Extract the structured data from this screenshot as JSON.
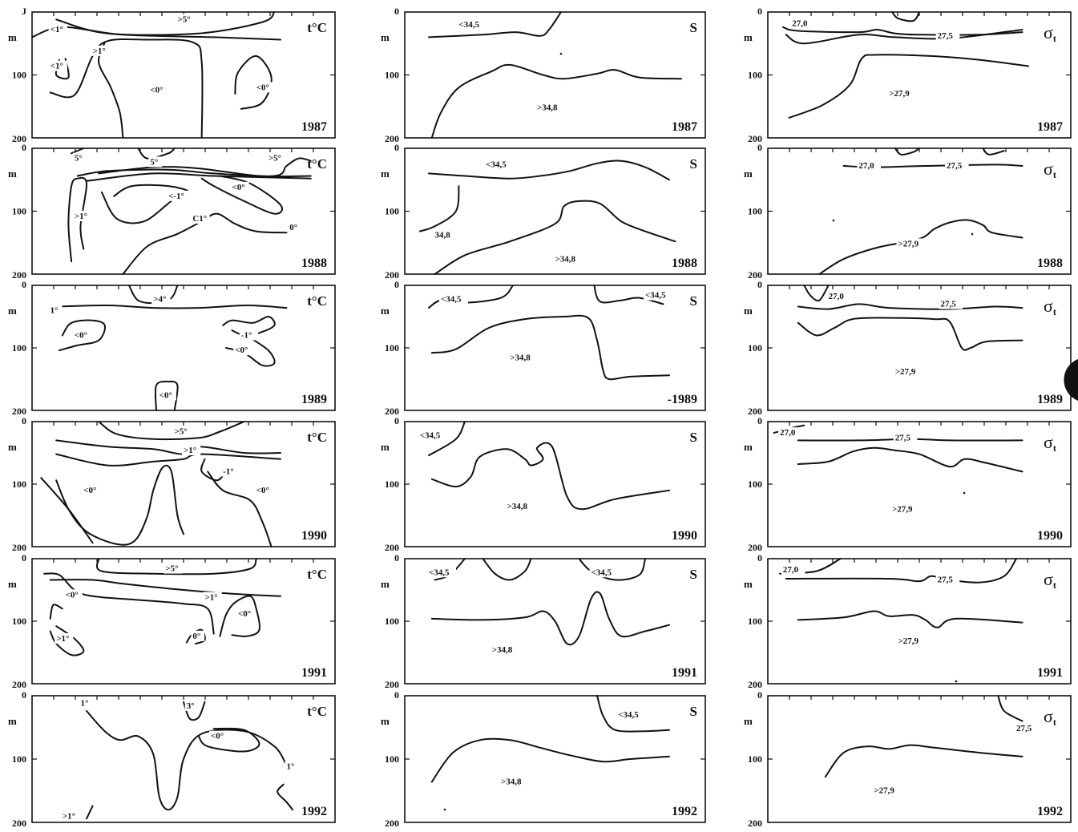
{
  "figure": {
    "columns": [
      {
        "parameter": "t°C"
      },
      {
        "parameter": "S"
      },
      {
        "parameter": "σt"
      }
    ],
    "depth_unit": "m",
    "depth_ticks": [
      "0",
      "100",
      "200"
    ],
    "first_panel_top_tick": "J",
    "years": [
      "1987",
      "1988",
      "1989",
      "1990",
      "1991",
      "1992"
    ],
    "year_labels": [
      [
        "1987",
        "1987",
        "1987"
      ],
      [
        "1988",
        "1988",
        "1988"
      ],
      [
        "1989",
        "-1989",
        "1989"
      ],
      [
        "1990",
        "1990",
        "1990"
      ],
      [
        "1991",
        "1991",
        "1991"
      ],
      [
        "1992",
        "1992",
        "1992"
      ]
    ]
  },
  "chart_data": {
    "type": "contour-sections",
    "panels": [
      {
        "row": 0,
        "col": 0,
        "year": "1987",
        "parameter": "t°C",
        "ylim": [
          0,
          200
        ],
        "contour_labels": [
          {
            "text": ">5°"
          },
          {
            "text": "<1°"
          },
          {
            "text": ">1°"
          },
          {
            "text": "<1°"
          },
          {
            "text": "<0°"
          },
          {
            "text": "<0°"
          }
        ]
      },
      {
        "row": 0,
        "col": 1,
        "year": "1987",
        "parameter": "S",
        "ylim": [
          0,
          200
        ],
        "contour_labels": [
          {
            "text": "<34,5"
          },
          {
            "text": ">34,8"
          }
        ]
      },
      {
        "row": 0,
        "col": 2,
        "year": "1987",
        "parameter": "σt",
        "ylim": [
          0,
          200
        ],
        "contour_labels": [
          {
            "text": "27,0"
          },
          {
            "text": "27,5"
          },
          {
            "text": ">27,9"
          }
        ]
      },
      {
        "row": 1,
        "col": 0,
        "year": "1988",
        "parameter": "t°C",
        "ylim": [
          0,
          200
        ],
        "contour_labels": [
          {
            "text": "5°"
          },
          {
            "text": "5°"
          },
          {
            "text": ">5°"
          },
          {
            "text": "<-1°"
          },
          {
            "text": "<0°"
          },
          {
            "text": ">1°"
          },
          {
            "text": "C1°"
          },
          {
            "text": "0°"
          }
        ]
      },
      {
        "row": 1,
        "col": 1,
        "year": "1988",
        "parameter": "S",
        "ylim": [
          0,
          200
        ],
        "contour_labels": [
          {
            "text": "<34,5"
          },
          {
            "text": "34,8"
          },
          {
            "text": ">34,8"
          }
        ]
      },
      {
        "row": 1,
        "col": 2,
        "year": "1988",
        "parameter": "σt",
        "ylim": [
          0,
          200
        ],
        "contour_labels": [
          {
            "text": "27,0"
          },
          {
            "text": "27,5"
          },
          {
            "text": ">27,9"
          }
        ]
      },
      {
        "row": 2,
        "col": 0,
        "year": "1989",
        "parameter": "t°C",
        "ylim": [
          0,
          200
        ],
        "contour_labels": [
          {
            "text": ">4°"
          },
          {
            "text": "1°"
          },
          {
            "text": "<0°"
          },
          {
            "text": "-1°"
          },
          {
            "text": "<0°"
          },
          {
            "text": "<0°"
          }
        ]
      },
      {
        "row": 2,
        "col": 1,
        "year": "1989",
        "parameter": "S",
        "ylim": [
          0,
          200
        ],
        "contour_labels": [
          {
            "text": "<34,5"
          },
          {
            "text": "<34,5"
          },
          {
            "text": ">34,8"
          }
        ]
      },
      {
        "row": 2,
        "col": 2,
        "year": "1989",
        "parameter": "σt",
        "ylim": [
          0,
          200
        ],
        "contour_labels": [
          {
            "text": "27,0"
          },
          {
            "text": "27,5"
          },
          {
            "text": ">27,9"
          }
        ]
      },
      {
        "row": 3,
        "col": 0,
        "year": "1990",
        "parameter": "t°C",
        "ylim": [
          0,
          200
        ],
        "contour_labels": [
          {
            "text": ">5°"
          },
          {
            "text": ">1°"
          },
          {
            "text": "-1°"
          },
          {
            "text": "<0°"
          },
          {
            "text": "<0°"
          }
        ]
      },
      {
        "row": 3,
        "col": 1,
        "year": "1990",
        "parameter": "S",
        "ylim": [
          0,
          200
        ],
        "contour_labels": [
          {
            "text": "<34,5"
          },
          {
            "text": ">34,8"
          }
        ]
      },
      {
        "row": 3,
        "col": 2,
        "year": "1990",
        "parameter": "σt",
        "ylim": [
          0,
          200
        ],
        "contour_labels": [
          {
            "text": "27,0"
          },
          {
            "text": "27,5"
          },
          {
            "text": ">27,9"
          }
        ]
      },
      {
        "row": 4,
        "col": 0,
        "year": "1991",
        "parameter": "t°C",
        "ylim": [
          0,
          200
        ],
        "contour_labels": [
          {
            "text": ">5°"
          },
          {
            "text": "<0°"
          },
          {
            "text": ">1°"
          },
          {
            "text": "<0°"
          },
          {
            "text": ">1°"
          },
          {
            "text": "0°"
          }
        ]
      },
      {
        "row": 4,
        "col": 1,
        "year": "1991",
        "parameter": "S",
        "ylim": [
          0,
          200
        ],
        "contour_labels": [
          {
            "text": "<34,5"
          },
          {
            "text": "<34,5"
          },
          {
            "text": ">34,8"
          }
        ]
      },
      {
        "row": 4,
        "col": 2,
        "year": "1991",
        "parameter": "σt",
        "ylim": [
          0,
          200
        ],
        "contour_labels": [
          {
            "text": "27,0"
          },
          {
            "text": "27,5"
          },
          {
            "text": ">27,9"
          }
        ]
      },
      {
        "row": 5,
        "col": 0,
        "year": "1992",
        "parameter": "t°C",
        "ylim": [
          0,
          200
        ],
        "contour_labels": [
          {
            "text": "1°"
          },
          {
            "text": "3°"
          },
          {
            "text": "<0°"
          },
          {
            "text": "1°"
          },
          {
            "text": ">1°"
          }
        ]
      },
      {
        "row": 5,
        "col": 1,
        "year": "1992",
        "parameter": "S",
        "ylim": [
          0,
          200
        ],
        "contour_labels": [
          {
            "text": "<34,5"
          },
          {
            "text": ">34,8"
          }
        ]
      },
      {
        "row": 5,
        "col": 2,
        "year": "1992",
        "parameter": "σt",
        "ylim": [
          0,
          200
        ],
        "contour_labels": [
          {
            "text": "27,5"
          },
          {
            "text": ">27,9"
          }
        ]
      }
    ]
  }
}
